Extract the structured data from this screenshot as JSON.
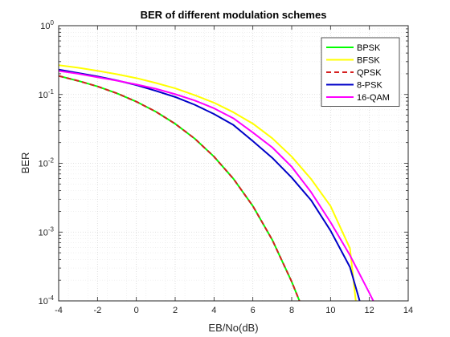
{
  "chart_data": {
    "type": "line",
    "title": "BER of different modulation schemes",
    "xlabel": "EB/No(dB)",
    "ylabel": "BER",
    "xlim": [
      -4,
      14
    ],
    "ylim": [
      0.0001,
      1
    ],
    "yscale": "log",
    "x_ticks": [
      "-4",
      "-2",
      "0",
      "2",
      "4",
      "6",
      "8",
      "10",
      "12",
      "14"
    ],
    "y_ticks": [
      {
        "base": "10",
        "exp": "0"
      },
      {
        "base": "10",
        "exp": "-1"
      },
      {
        "base": "10",
        "exp": "-2"
      },
      {
        "base": "10",
        "exp": "-3"
      },
      {
        "base": "10",
        "exp": "-4"
      }
    ],
    "grid": true,
    "legend_position": "top-right",
    "series": [
      {
        "name": "BPSK",
        "color": "#00ff00",
        "style": "solid",
        "x": [
          -4,
          -3,
          -2,
          -1,
          0,
          1,
          2,
          3,
          4,
          5,
          6,
          7,
          8,
          8.4
        ],
        "y": [
          0.186,
          0.158,
          0.131,
          0.104,
          0.0787,
          0.0563,
          0.0375,
          0.0229,
          0.0125,
          0.00595,
          0.00239,
          0.00077,
          0.00019,
          0.0001
        ]
      },
      {
        "name": "BFSK",
        "color": "#ffff00",
        "style": "solid",
        "x": [
          -4,
          -3,
          -2,
          -1,
          0,
          1,
          2,
          3,
          4,
          5,
          6,
          7,
          8,
          9,
          10,
          11,
          11.3
        ],
        "y": [
          0.267,
          0.245,
          0.221,
          0.197,
          0.173,
          0.147,
          0.123,
          0.0978,
          0.0759,
          0.0551,
          0.0377,
          0.0231,
          0.0125,
          0.0059,
          0.00239,
          0.00058,
          0.0001
        ]
      },
      {
        "name": "QPSK",
        "color": "#d62020",
        "style": "dashed",
        "x": [
          -4,
          -3,
          -2,
          -1,
          0,
          1,
          2,
          3,
          4,
          5,
          6,
          7,
          8,
          8.4
        ],
        "y": [
          0.186,
          0.158,
          0.131,
          0.104,
          0.0787,
          0.0563,
          0.0375,
          0.0229,
          0.0125,
          0.00595,
          0.00239,
          0.00077,
          0.00019,
          0.0001
        ]
      },
      {
        "name": "8-PSK",
        "color": "#0000c8",
        "style": "solid",
        "x": [
          -4,
          -3,
          -2,
          -1,
          0,
          1,
          2,
          3,
          4,
          5,
          6,
          7,
          8,
          9,
          10,
          11,
          11.5
        ],
        "y": [
          0.23,
          0.205,
          0.183,
          0.16,
          0.137,
          0.113,
          0.092,
          0.071,
          0.052,
          0.036,
          0.021,
          0.012,
          0.0062,
          0.0029,
          0.00105,
          0.00031,
          0.0001
        ]
      },
      {
        "name": "16-QAM",
        "color": "#ff00ff",
        "style": "solid",
        "x": [
          -4,
          -3,
          -2,
          -1,
          0,
          1,
          2,
          3,
          4,
          5,
          6,
          7,
          8,
          9,
          10,
          11,
          12,
          12.2
        ],
        "y": [
          0.22,
          0.2,
          0.178,
          0.159,
          0.14,
          0.121,
          0.101,
          0.082,
          0.063,
          0.045,
          0.028,
          0.017,
          0.0089,
          0.0038,
          0.00139,
          0.00046,
          0.00013,
          0.0001
        ]
      }
    ]
  }
}
